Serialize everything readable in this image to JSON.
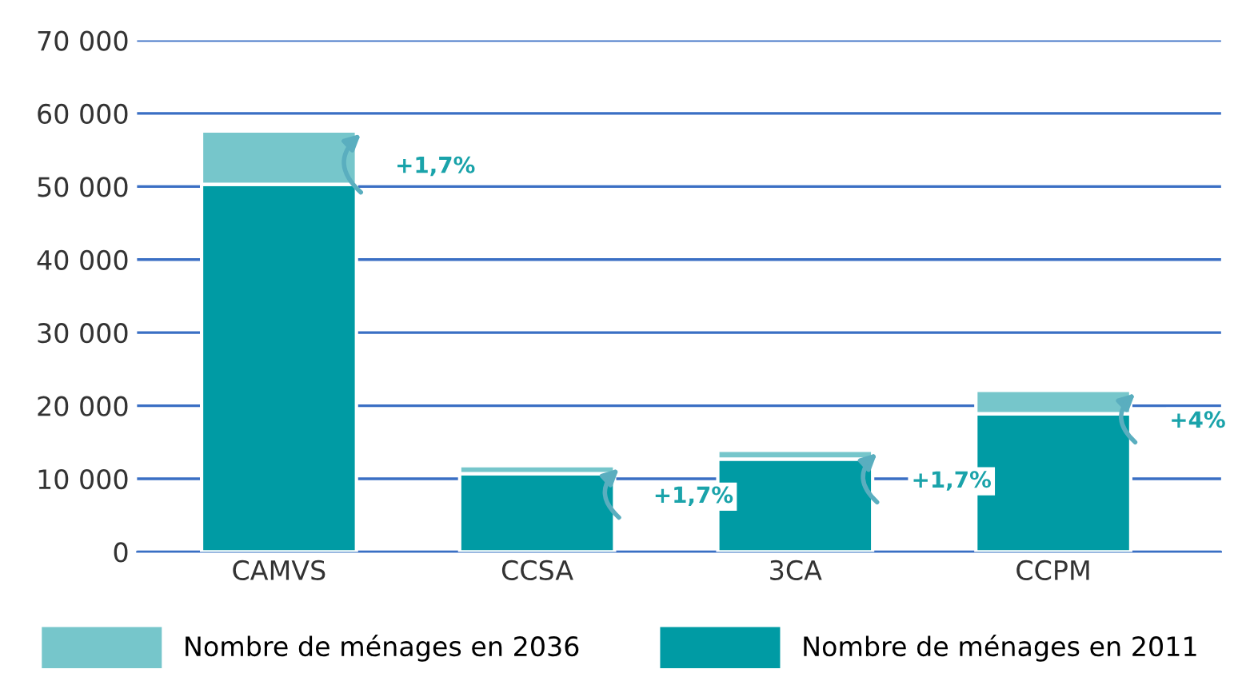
{
  "chart_data": {
    "type": "bar",
    "stacked": true,
    "categories": [
      "CAMVS",
      "CCSA",
      "3CA",
      "CCPM"
    ],
    "series": [
      {
        "name": "Nombre de ménages en 2011",
        "color": "#009ba4",
        "values": [
          50300,
          10700,
          12700,
          18900
        ]
      },
      {
        "name": "Nombre de ménages en 2036",
        "color": "#76c6cb",
        "values": [
          7300,
          1100,
          1200,
          3200
        ]
      }
    ],
    "ylim": [
      0,
      70000
    ],
    "yticks": [
      0,
      {
        "value": 10000,
        "label": "10 000"
      },
      {
        "value": 20000,
        "label": "20 000"
      },
      {
        "value": 30000,
        "label": "30 000"
      },
      {
        "value": 40000,
        "label": "40 000"
      },
      {
        "value": 50000,
        "label": "50 000"
      },
      {
        "value": 60000,
        "label": "60 000"
      },
      {
        "value": 70000,
        "label": "70 000"
      }
    ],
    "grid": "y",
    "legend": "bottom",
    "annotations": [
      "+1,7%",
      "+1,7%",
      "+1,7%",
      "+4%"
    ]
  }
}
